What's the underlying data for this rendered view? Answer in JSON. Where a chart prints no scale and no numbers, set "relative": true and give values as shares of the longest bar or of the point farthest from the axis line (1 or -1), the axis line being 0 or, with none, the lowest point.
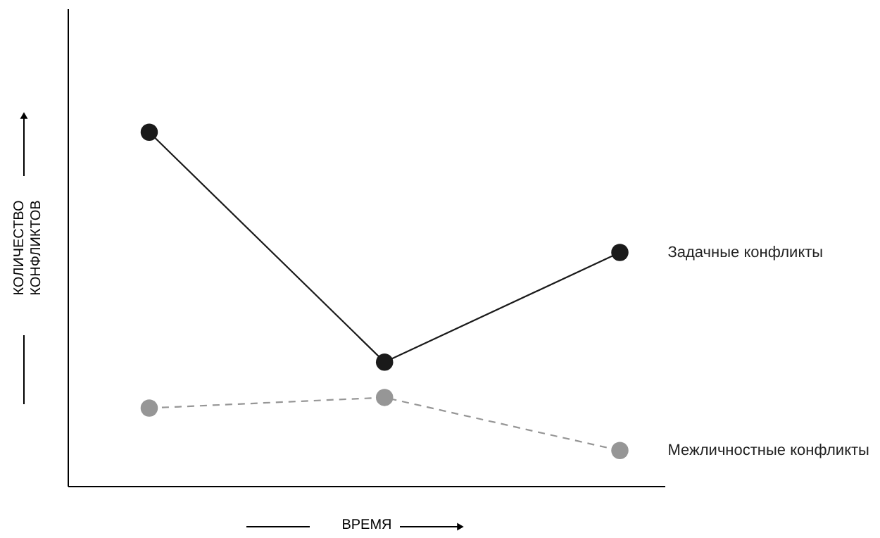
{
  "chart_data": {
    "type": "line",
    "relative": true,
    "xlabel": "ВРЕМЯ",
    "ylabel": "КОЛИЧЕСТВО КОНФЛИКТОВ",
    "categories": [
      null,
      null,
      null
    ],
    "series": [
      {
        "name": "Задачные конфликты",
        "color": "#1a1a1a",
        "values": [
          1,
          0.35,
          0.66
        ],
        "line_style": "solid",
        "marker": "circle"
      },
      {
        "name": "Межличностные конфликты",
        "color": "#969696",
        "values": [
          0.22,
          0.25,
          0.1
        ],
        "line_style": "dashed",
        "marker": "circle"
      }
    ]
  }
}
